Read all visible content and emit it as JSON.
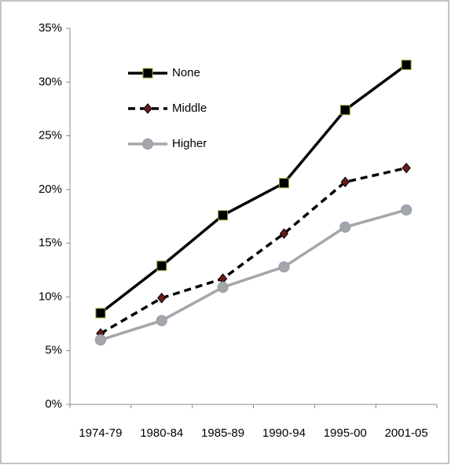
{
  "chart_data": {
    "type": "line",
    "categories": [
      "1974-79",
      "1980-84",
      "1985-89",
      "1990-94",
      "1995-00",
      "2001-05"
    ],
    "series": [
      {
        "name": "None",
        "color": "#000000",
        "marker": "square",
        "dashed": false,
        "values": [
          8.5,
          12.9,
          17.6,
          20.6,
          27.4,
          31.6
        ]
      },
      {
        "name": "Middle",
        "color": "#000000",
        "marker": "diamond",
        "dashed": true,
        "values": [
          6.6,
          9.9,
          11.7,
          15.9,
          20.7,
          22.0
        ]
      },
      {
        "name": "Higher",
        "color": "#a6a6a6",
        "marker": "circle",
        "dashed": false,
        "values": [
          6.0,
          7.8,
          10.9,
          12.8,
          16.5,
          18.1
        ]
      }
    ],
    "ylim": [
      0,
      35
    ],
    "yticks": [
      {
        "value": 0,
        "label": "0%"
      },
      {
        "value": 5,
        "label": "5%"
      },
      {
        "value": 10,
        "label": "10%"
      },
      {
        "value": 15,
        "label": "15%"
      },
      {
        "value": 20,
        "label": "20%"
      },
      {
        "value": 25,
        "label": "25%"
      },
      {
        "value": 30,
        "label": "30%"
      },
      {
        "value": 35,
        "label": "35%"
      }
    ],
    "legend": "upper-left",
    "grid": false
  }
}
